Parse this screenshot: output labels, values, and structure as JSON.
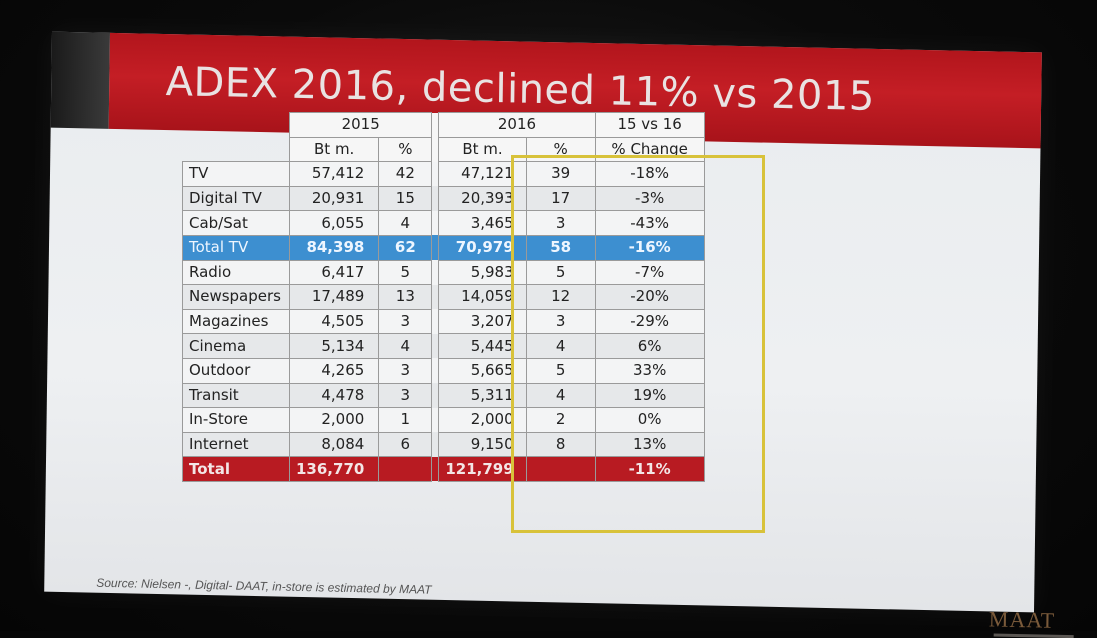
{
  "slide": {
    "title": "ADEX 2016, declined 11% vs 2015",
    "source": "Source: Nielsen -, Digital- DAAT, in-store is estimated by MAAT",
    "logo": "MAAT"
  },
  "colors": {
    "banner": "#c41e25",
    "total_tv_row": "#3d8fd0",
    "total_row": "#b81b22",
    "highlight_box": "#d8c23a"
  },
  "chart_data": {
    "type": "table",
    "title": "ADEX 2016, declined 11% vs 2015",
    "group_headers": [
      "2015",
      "2016",
      "15 vs 16"
    ],
    "columns": [
      "Bt m.",
      "%",
      "Bt m.",
      "%",
      "% Change"
    ],
    "rows": [
      {
        "media": "TV",
        "bt2015": "57,412",
        "pct2015": "42",
        "bt2016": "47,121",
        "pct2016": "39",
        "change": "-18%"
      },
      {
        "media": "Digital TV",
        "bt2015": "20,931",
        "pct2015": "15",
        "bt2016": "20,393",
        "pct2016": "17",
        "change": "-3%"
      },
      {
        "media": "Cab/Sat",
        "bt2015": "6,055",
        "pct2015": "4",
        "bt2016": "3,465",
        "pct2016": "3",
        "change": "-43%"
      },
      {
        "media": "Total TV",
        "bt2015": "84,398",
        "pct2015": "62",
        "bt2016": "70,979",
        "pct2016": "58",
        "change": "-16%"
      },
      {
        "media": "Radio",
        "bt2015": "6,417",
        "pct2015": "5",
        "bt2016": "5,983",
        "pct2016": "5",
        "change": "-7%"
      },
      {
        "media": "Newspapers",
        "bt2015": "17,489",
        "pct2015": "13",
        "bt2016": "14,059",
        "pct2016": "12",
        "change": "-20%"
      },
      {
        "media": "Magazines",
        "bt2015": "4,505",
        "pct2015": "3",
        "bt2016": "3,207",
        "pct2016": "3",
        "change": "-29%"
      },
      {
        "media": "Cinema",
        "bt2015": "5,134",
        "pct2015": "4",
        "bt2016": "5,445",
        "pct2016": "4",
        "change": "6%"
      },
      {
        "media": "Outdoor",
        "bt2015": "4,265",
        "pct2015": "3",
        "bt2016": "5,665",
        "pct2016": "5",
        "change": "33%"
      },
      {
        "media": "Transit",
        "bt2015": "4,478",
        "pct2015": "3",
        "bt2016": "5,311",
        "pct2016": "4",
        "change": "19%"
      },
      {
        "media": "In-Store",
        "bt2015": "2,000",
        "pct2015": "1",
        "bt2016": "2,000",
        "pct2016": "2",
        "change": "0%"
      },
      {
        "media": "Internet",
        "bt2015": "8,084",
        "pct2015": "6",
        "bt2016": "9,150",
        "pct2016": "8",
        "change": "13%"
      },
      {
        "media": "Total",
        "bt2015": "136,770",
        "pct2015": "",
        "bt2016": "121,799",
        "pct2016": "",
        "change": "-11%"
      }
    ]
  }
}
